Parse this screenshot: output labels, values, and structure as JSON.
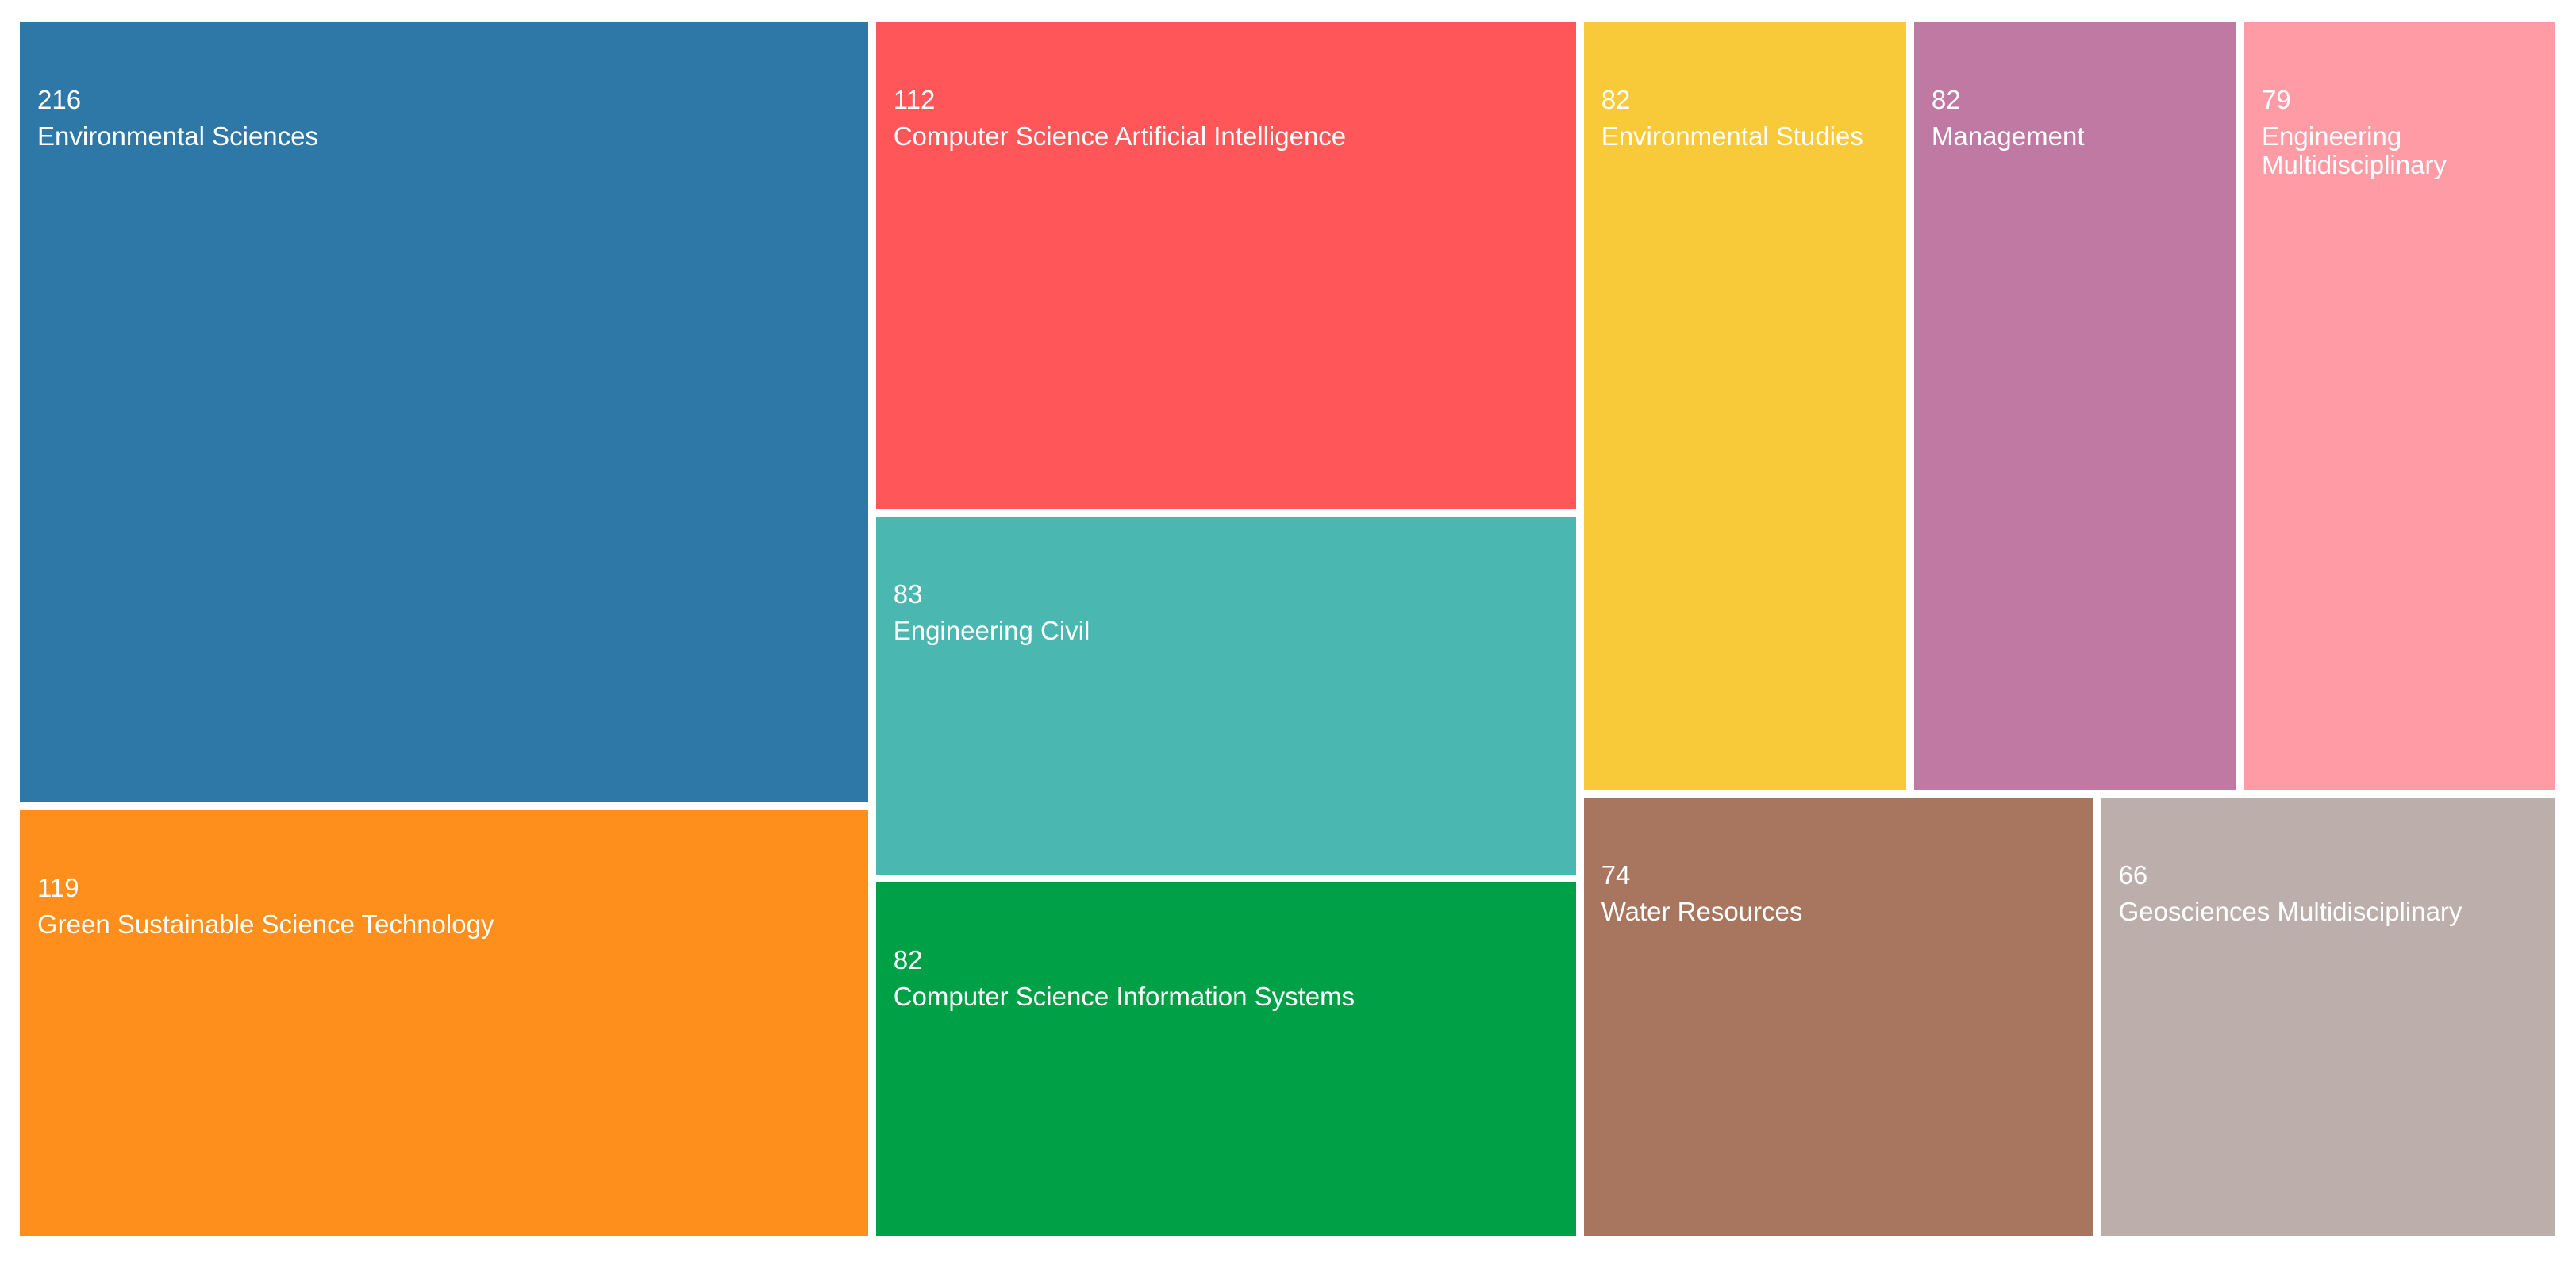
{
  "chart_data": {
    "type": "treemap",
    "categories": [
      "Environmental Sciences",
      "Green Sustainable Science Technology",
      "Computer Science Artificial Intelligence",
      "Engineering Civil",
      "Computer Science Information Systems",
      "Environmental Studies",
      "Management",
      "Engineering Multidisciplinary",
      "Water Resources",
      "Geosciences Multidisciplinary"
    ],
    "values": [
      216,
      119,
      112,
      83,
      82,
      82,
      82,
      79,
      74,
      66
    ],
    "colors": [
      "#2e78a8",
      "#ff8f1c",
      "#ff565a",
      "#4ab7b1",
      "#00a046",
      "#f8ca3a",
      "#bf79a2",
      "#ff9ba5",
      "#a8765f",
      "#bcaeaa"
    ]
  }
}
